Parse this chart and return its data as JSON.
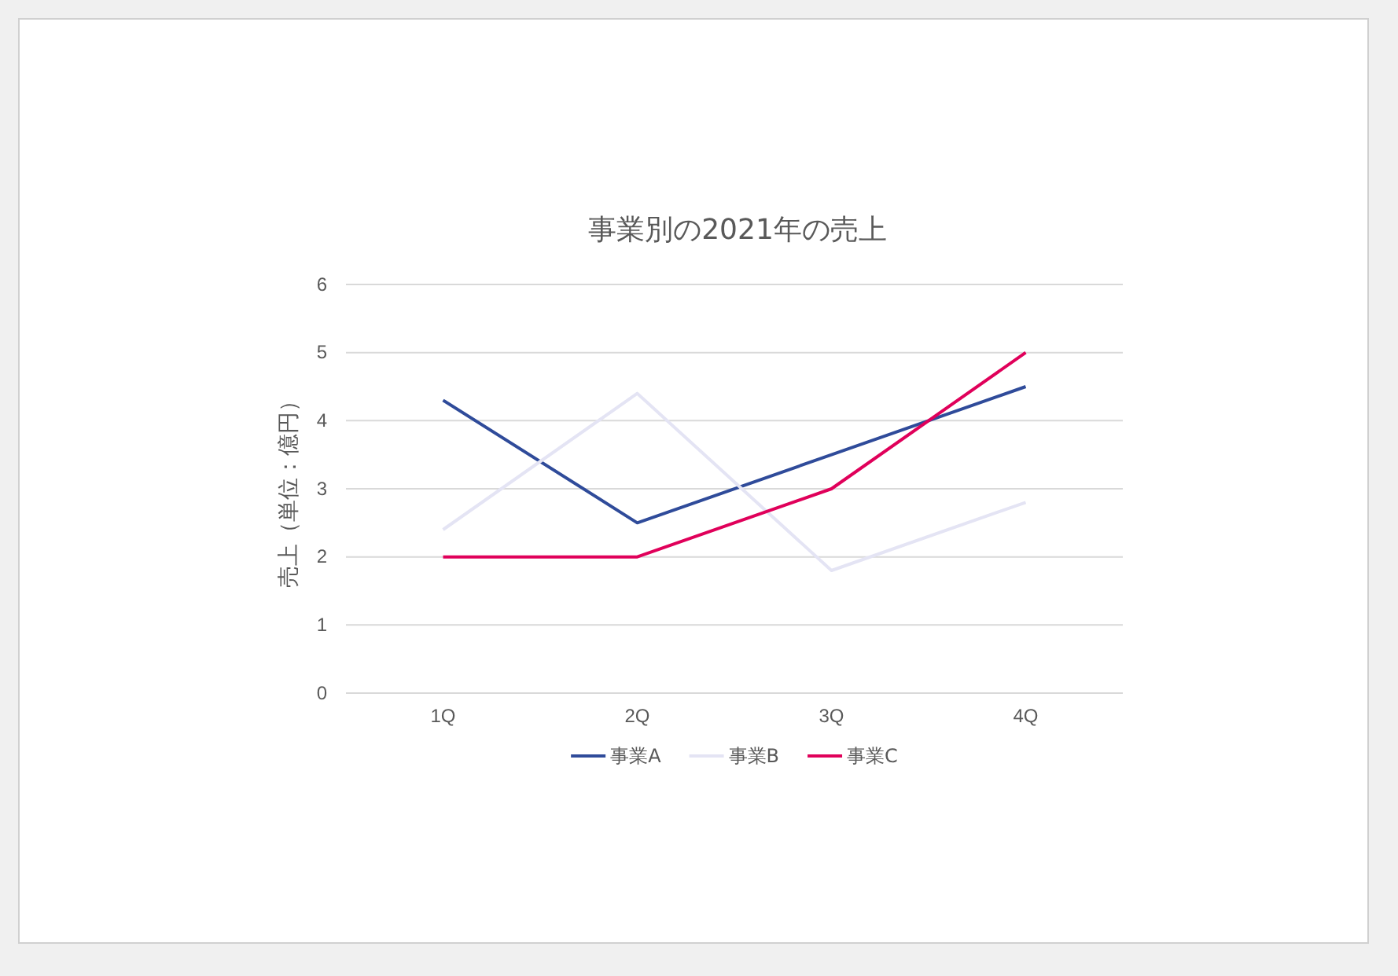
{
  "chart_data": {
    "type": "line",
    "title": "事業別の2021年の売上",
    "ylabel": "売上（単位：億円）",
    "categories": [
      "1Q",
      "2Q",
      "3Q",
      "4Q"
    ],
    "series": [
      {
        "name": "事業A",
        "color": "#2f4b9a",
        "values": [
          4.3,
          2.5,
          3.5,
          4.5
        ]
      },
      {
        "name": "事業B",
        "color": "#e4e4f4",
        "values": [
          2.4,
          4.4,
          1.8,
          2.8
        ]
      },
      {
        "name": "事業C",
        "color": "#e0005a",
        "values": [
          2,
          2,
          3,
          5
        ]
      }
    ],
    "ylim": [
      0,
      6
    ],
    "yticks": [
      0,
      1,
      2,
      3,
      4,
      5,
      6
    ],
    "grid": "y",
    "legend": "bottom",
    "marker": "none",
    "line_style": "solid"
  }
}
